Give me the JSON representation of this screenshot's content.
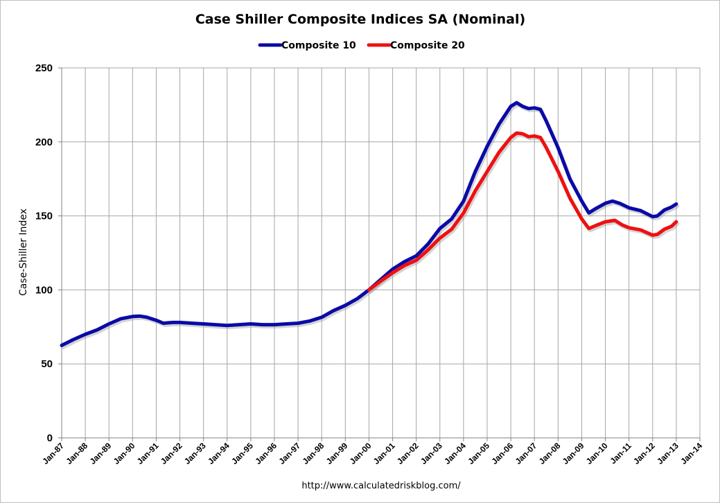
{
  "chart_data": {
    "type": "line",
    "title": "Case Shiller Composite Indices SA (Nominal)",
    "ylabel": "Case-Shiller Index",
    "xlabel": "",
    "source_note": "http://www.calculatedriskblog.com/",
    "ylim": [
      0,
      250
    ],
    "yticks": [
      0,
      50,
      100,
      150,
      200,
      250
    ],
    "xlim": [
      1987,
      2014
    ],
    "xticks": [
      {
        "value": 1987,
        "label": "Jan-87"
      },
      {
        "value": 1988,
        "label": "Jan-88"
      },
      {
        "value": 1989,
        "label": "Jan-89"
      },
      {
        "value": 1990,
        "label": "Jan-90"
      },
      {
        "value": 1991,
        "label": "Jan-91"
      },
      {
        "value": 1992,
        "label": "Jan-92"
      },
      {
        "value": 1993,
        "label": "Jan-93"
      },
      {
        "value": 1994,
        "label": "Jan-94"
      },
      {
        "value": 1995,
        "label": "Jan-95"
      },
      {
        "value": 1996,
        "label": "Jan-96"
      },
      {
        "value": 1997,
        "label": "Jan-97"
      },
      {
        "value": 1998,
        "label": "Jan-98"
      },
      {
        "value": 1999,
        "label": "Jan-99"
      },
      {
        "value": 2000,
        "label": "Jan-00"
      },
      {
        "value": 2001,
        "label": "Jan-01"
      },
      {
        "value": 2002,
        "label": "Jan-02"
      },
      {
        "value": 2003,
        "label": "Jan-03"
      },
      {
        "value": 2004,
        "label": "Jan-04"
      },
      {
        "value": 2005,
        "label": "Jan-05"
      },
      {
        "value": 2006,
        "label": "Jan-06"
      },
      {
        "value": 2007,
        "label": "Jan-07"
      },
      {
        "value": 2008,
        "label": "Jan-08"
      },
      {
        "value": 2009,
        "label": "Jan-09"
      },
      {
        "value": 2010,
        "label": "Jan-10"
      },
      {
        "value": 2011,
        "label": "Jan-11"
      },
      {
        "value": 2012,
        "label": "Jan-12"
      },
      {
        "value": 2013,
        "label": "Jan-13"
      },
      {
        "value": 2014,
        "label": "Jan-14"
      }
    ],
    "grid": true,
    "legend_position": "top-center",
    "series": [
      {
        "name": "Composite 10",
        "color": "#0a0aa8",
        "points": [
          [
            1987.0,
            62.5
          ],
          [
            1987.5,
            66.5
          ],
          [
            1988.0,
            70.0
          ],
          [
            1988.5,
            73.0
          ],
          [
            1989.0,
            77.0
          ],
          [
            1989.5,
            80.5
          ],
          [
            1990.0,
            82.0
          ],
          [
            1990.3,
            82.3
          ],
          [
            1990.6,
            81.5
          ],
          [
            1991.0,
            79.5
          ],
          [
            1991.3,
            77.5
          ],
          [
            1991.7,
            78.0
          ],
          [
            1992.0,
            78.0
          ],
          [
            1992.5,
            77.5
          ],
          [
            1993.0,
            77.0
          ],
          [
            1993.5,
            76.5
          ],
          [
            1994.0,
            76.0
          ],
          [
            1994.5,
            76.5
          ],
          [
            1995.0,
            77.0
          ],
          [
            1995.5,
            76.5
          ],
          [
            1996.0,
            76.5
          ],
          [
            1996.5,
            77.0
          ],
          [
            1997.0,
            77.5
          ],
          [
            1997.5,
            79.0
          ],
          [
            1998.0,
            81.5
          ],
          [
            1998.5,
            86.0
          ],
          [
            1999.0,
            89.5
          ],
          [
            1999.5,
            94.0
          ],
          [
            2000.0,
            100.0
          ],
          [
            2000.5,
            107.0
          ],
          [
            2001.0,
            114.0
          ],
          [
            2001.5,
            119.0
          ],
          [
            2002.0,
            123.0
          ],
          [
            2002.5,
            131.0
          ],
          [
            2003.0,
            141.5
          ],
          [
            2003.5,
            148.0
          ],
          [
            2004.0,
            160.0
          ],
          [
            2004.5,
            180.0
          ],
          [
            2005.0,
            197.0
          ],
          [
            2005.5,
            212.0
          ],
          [
            2006.0,
            224.0
          ],
          [
            2006.25,
            226.5
          ],
          [
            2006.5,
            224.0
          ],
          [
            2006.75,
            222.5
          ],
          [
            2007.0,
            223.0
          ],
          [
            2007.25,
            222.0
          ],
          [
            2007.5,
            214.0
          ],
          [
            2008.0,
            196.0
          ],
          [
            2008.5,
            175.0
          ],
          [
            2009.0,
            160.0
          ],
          [
            2009.3,
            152.0
          ],
          [
            2009.6,
            155.0
          ],
          [
            2010.0,
            158.5
          ],
          [
            2010.3,
            160.0
          ],
          [
            2010.6,
            158.5
          ],
          [
            2011.0,
            155.5
          ],
          [
            2011.5,
            153.5
          ],
          [
            2012.0,
            149.5
          ],
          [
            2012.2,
            150.0
          ],
          [
            2012.5,
            154.0
          ],
          [
            2012.8,
            156.0
          ],
          [
            2013.0,
            158.0
          ]
        ]
      },
      {
        "name": "Composite 20",
        "color": "#ee1111",
        "points": [
          [
            2000.0,
            100.0
          ],
          [
            2000.5,
            106.0
          ],
          [
            2001.0,
            111.5
          ],
          [
            2001.5,
            116.5
          ],
          [
            2002.0,
            120.0
          ],
          [
            2002.5,
            127.0
          ],
          [
            2003.0,
            135.0
          ],
          [
            2003.5,
            141.0
          ],
          [
            2004.0,
            152.0
          ],
          [
            2004.5,
            167.0
          ],
          [
            2005.0,
            180.0
          ],
          [
            2005.5,
            193.0
          ],
          [
            2006.0,
            203.0
          ],
          [
            2006.25,
            206.0
          ],
          [
            2006.5,
            205.5
          ],
          [
            2006.75,
            203.5
          ],
          [
            2007.0,
            204.0
          ],
          [
            2007.25,
            203.0
          ],
          [
            2007.5,
            196.0
          ],
          [
            2008.0,
            180.0
          ],
          [
            2008.5,
            162.0
          ],
          [
            2009.0,
            148.0
          ],
          [
            2009.3,
            141.5
          ],
          [
            2009.6,
            143.5
          ],
          [
            2010.0,
            146.0
          ],
          [
            2010.4,
            147.0
          ],
          [
            2010.7,
            144.0
          ],
          [
            2011.0,
            142.0
          ],
          [
            2011.5,
            140.5
          ],
          [
            2012.0,
            137.0
          ],
          [
            2012.2,
            137.5
          ],
          [
            2012.5,
            141.0
          ],
          [
            2012.8,
            143.0
          ],
          [
            2013.0,
            146.0
          ]
        ]
      }
    ]
  }
}
